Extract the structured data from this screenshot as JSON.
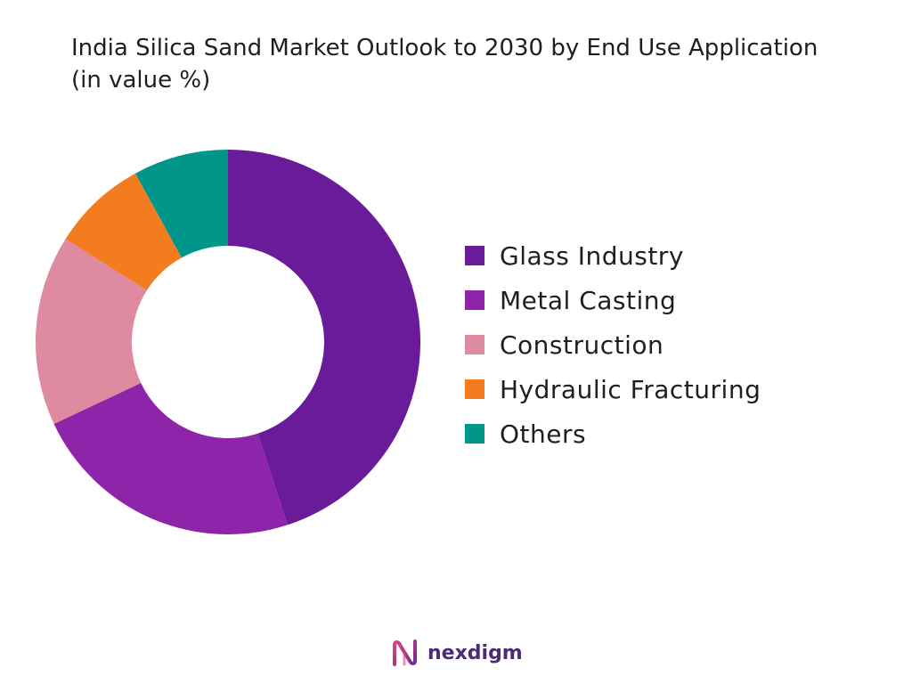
{
  "chart_data": {
    "type": "pie",
    "title": "India Silica Sand Market Outlook to 2030 by End Use Application (in value %)",
    "categories": [
      "Glass Industry",
      "Metal Casting",
      "Construction",
      "Hydraulic Fracturing",
      "Others"
    ],
    "values": [
      45,
      23,
      16,
      8,
      8
    ],
    "colors": [
      "#6a1b9a",
      "#8e24aa",
      "#de8aa0",
      "#f47c20",
      "#00968a"
    ],
    "donut": true,
    "legend_position": "right"
  },
  "brand": {
    "name": "nexdigm"
  }
}
